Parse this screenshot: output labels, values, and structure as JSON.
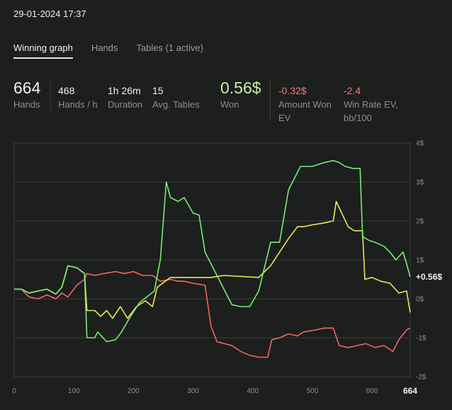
{
  "header": {
    "datetime": "29-01-2024 17:37"
  },
  "tabs": [
    {
      "label": "Winning graph",
      "active": true
    },
    {
      "label": "Hands",
      "active": false
    },
    {
      "label": "Tables (1 active)",
      "active": false
    }
  ],
  "stats": {
    "hands": {
      "value": "664",
      "label": "Hands"
    },
    "hands_per_hour": {
      "value": "468",
      "label": "Hands / h"
    },
    "duration": {
      "value": "1h 26m",
      "label": "Duration"
    },
    "avg_tables": {
      "value": "15",
      "label": "Avg. Tables"
    },
    "won": {
      "value": "0.56$",
      "label": "Won"
    },
    "amount_won_ev": {
      "value": "-0.32$",
      "label_line1": "Amount Won",
      "label_line2": "EV"
    },
    "win_rate_ev": {
      "value": "-2.4",
      "label_line1": "Win Rate EV,",
      "label_line2": "bb/100"
    }
  },
  "colors": {
    "background": "#1c1f1d",
    "won_positive": "#c7f0a7",
    "ev_negative": "#f07a78",
    "line_green": "#7bea74",
    "line_yellow": "#ede65a",
    "line_red": "#f26466",
    "grid": "#3a3e3b"
  },
  "chart_data": {
    "type": "line",
    "x_ticks": [
      0,
      100,
      200,
      300,
      400,
      500,
      600
    ],
    "x_end_label": "664",
    "xlim": [
      0,
      664
    ],
    "y_ticks": [
      {
        "value": 4,
        "label": "4$"
      },
      {
        "value": 3,
        "label": "3$"
      },
      {
        "value": 2,
        "label": "2$"
      },
      {
        "value": 1,
        "label": "1$"
      },
      {
        "value": 0,
        "label": "0$"
      },
      {
        "value": -1,
        "label": "-1$"
      },
      {
        "value": -2,
        "label": "-2$"
      }
    ],
    "ylim": [
      -2,
      4
    ],
    "end_label": "+0.56$",
    "series": [
      {
        "color": "#7bea74",
        "points": [
          [
            0,
            0.25
          ],
          [
            12,
            0.25
          ],
          [
            25,
            0.15
          ],
          [
            40,
            0.2
          ],
          [
            55,
            0.25
          ],
          [
            70,
            0.12
          ],
          [
            80,
            0.3
          ],
          [
            90,
            0.85
          ],
          [
            105,
            0.8
          ],
          [
            118,
            0.65
          ],
          [
            122,
            -1.0
          ],
          [
            135,
            -1.0
          ],
          [
            140,
            -0.85
          ],
          [
            155,
            -1.1
          ],
          [
            170,
            -1.05
          ],
          [
            180,
            -0.85
          ],
          [
            195,
            -0.45
          ],
          [
            210,
            -0.1
          ],
          [
            235,
            0.2
          ],
          [
            245,
            1.0
          ],
          [
            255,
            3.0
          ],
          [
            262,
            2.6
          ],
          [
            275,
            2.5
          ],
          [
            285,
            2.6
          ],
          [
            300,
            2.2
          ],
          [
            310,
            2.15
          ],
          [
            320,
            1.2
          ],
          [
            330,
            0.9
          ],
          [
            340,
            0.6
          ],
          [
            365,
            -0.15
          ],
          [
            380,
            -0.2
          ],
          [
            395,
            -0.2
          ],
          [
            410,
            0.2
          ],
          [
            430,
            1.45
          ],
          [
            445,
            1.45
          ],
          [
            460,
            2.8
          ],
          [
            480,
            3.4
          ],
          [
            500,
            3.4
          ],
          [
            520,
            3.5
          ],
          [
            535,
            3.55
          ],
          [
            545,
            3.5
          ],
          [
            555,
            3.4
          ],
          [
            568,
            3.35
          ],
          [
            580,
            3.35
          ],
          [
            584,
            1.6
          ],
          [
            595,
            1.5
          ],
          [
            605,
            1.45
          ],
          [
            620,
            1.35
          ],
          [
            630,
            1.2
          ],
          [
            640,
            1.0
          ],
          [
            652,
            1.2
          ],
          [
            658,
            0.9
          ],
          [
            664,
            0.56
          ]
        ]
      },
      {
        "color": "#ede65a",
        "points": [
          [
            0,
            0.25
          ],
          [
            12,
            0.25
          ],
          [
            25,
            0.15
          ],
          [
            40,
            0.2
          ],
          [
            55,
            0.25
          ],
          [
            70,
            0.12
          ],
          [
            80,
            0.3
          ],
          [
            90,
            0.85
          ],
          [
            105,
            0.8
          ],
          [
            118,
            0.65
          ],
          [
            122,
            -0.3
          ],
          [
            135,
            -0.3
          ],
          [
            145,
            -0.45
          ],
          [
            155,
            -0.3
          ],
          [
            165,
            -0.5
          ],
          [
            178,
            -0.2
          ],
          [
            190,
            -0.5
          ],
          [
            205,
            -0.2
          ],
          [
            220,
            -0.05
          ],
          [
            232,
            -0.2
          ],
          [
            240,
            0.3
          ],
          [
            262,
            0.55
          ],
          [
            330,
            0.55
          ],
          [
            352,
            0.6
          ],
          [
            410,
            0.55
          ],
          [
            430,
            0.85
          ],
          [
            460,
            1.55
          ],
          [
            475,
            1.85
          ],
          [
            485,
            1.85
          ],
          [
            500,
            1.9
          ],
          [
            520,
            1.95
          ],
          [
            535,
            2.0
          ],
          [
            540,
            2.5
          ],
          [
            560,
            1.85
          ],
          [
            570,
            1.75
          ],
          [
            584,
            1.75
          ],
          [
            588,
            0.5
          ],
          [
            600,
            0.55
          ],
          [
            615,
            0.45
          ],
          [
            630,
            0.4
          ],
          [
            645,
            0.15
          ],
          [
            658,
            0.2
          ],
          [
            664,
            -0.35
          ]
        ]
      },
      {
        "color": "#f26466",
        "points": [
          [
            0,
            0.25
          ],
          [
            12,
            0.25
          ],
          [
            25,
            0.05
          ],
          [
            40,
            0.0
          ],
          [
            55,
            0.1
          ],
          [
            70,
            0.0
          ],
          [
            80,
            0.15
          ],
          [
            90,
            0.05
          ],
          [
            105,
            0.35
          ],
          [
            118,
            0.5
          ],
          [
            122,
            0.65
          ],
          [
            135,
            0.6
          ],
          [
            150,
            0.65
          ],
          [
            170,
            0.7
          ],
          [
            185,
            0.65
          ],
          [
            200,
            0.7
          ],
          [
            215,
            0.6
          ],
          [
            232,
            0.6
          ],
          [
            245,
            0.45
          ],
          [
            262,
            0.5
          ],
          [
            275,
            0.45
          ],
          [
            285,
            0.45
          ],
          [
            300,
            0.4
          ],
          [
            320,
            0.35
          ],
          [
            330,
            -0.7
          ],
          [
            340,
            -1.1
          ],
          [
            365,
            -1.2
          ],
          [
            380,
            -1.35
          ],
          [
            395,
            -1.45
          ],
          [
            410,
            -1.5
          ],
          [
            425,
            -1.5
          ],
          [
            432,
            -1.05
          ],
          [
            445,
            -1.0
          ],
          [
            460,
            -0.9
          ],
          [
            475,
            -0.95
          ],
          [
            485,
            -0.85
          ],
          [
            505,
            -0.8
          ],
          [
            520,
            -0.75
          ],
          [
            535,
            -0.75
          ],
          [
            545,
            -1.2
          ],
          [
            560,
            -1.25
          ],
          [
            575,
            -1.2
          ],
          [
            590,
            -1.15
          ],
          [
            605,
            -1.25
          ],
          [
            620,
            -1.2
          ],
          [
            635,
            -1.35
          ],
          [
            645,
            -1.05
          ],
          [
            658,
            -0.8
          ],
          [
            664,
            -0.75
          ]
        ]
      }
    ]
  }
}
